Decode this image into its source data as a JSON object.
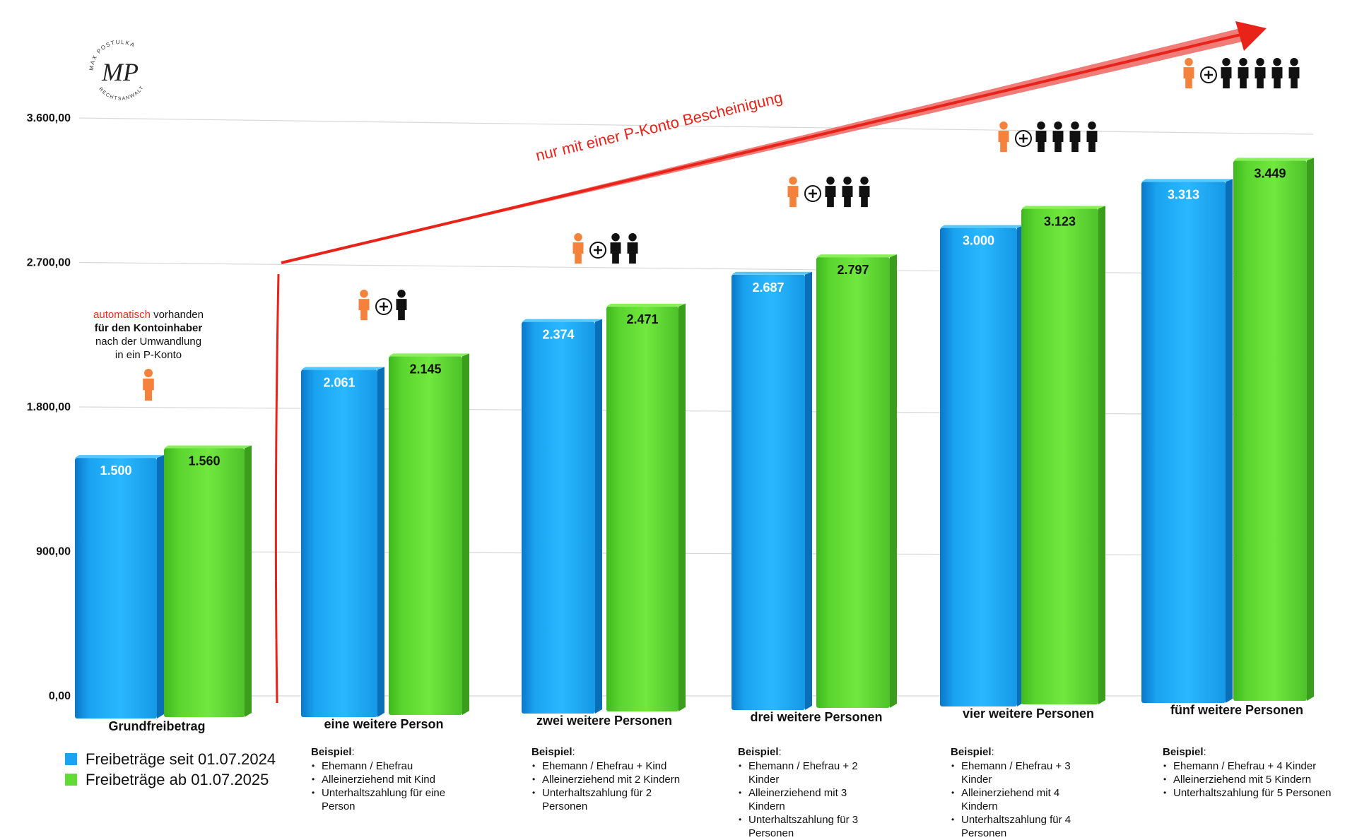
{
  "chart_data": {
    "type": "bar",
    "categories": [
      "Grundfreibetrag",
      "eine weitere Person",
      "zwei weitere Personen",
      "drei weitere Personen",
      "vier weitere Personen",
      "fünf weitere Personen"
    ],
    "series": [
      {
        "name": "Freibeträge seit 01.07.2024",
        "values": [
          1500,
          2061,
          2374,
          2687,
          3000,
          3313
        ],
        "labels": [
          "1.500",
          "2.061",
          "2.374",
          "2.687",
          "3.000",
          "3.313"
        ],
        "color": "#1aa3f0"
      },
      {
        "name": "Freibeträge ab 01.07.2025",
        "values": [
          1560,
          2145,
          2471,
          2797,
          3123,
          3449
        ],
        "labels": [
          "1.560",
          "2.145",
          "2.471",
          "2.797",
          "3.123",
          "3.449"
        ],
        "color": "#62dc35"
      }
    ],
    "ylim": [
      0,
      3600
    ],
    "yticks": [
      0,
      900,
      1800,
      2700,
      3600
    ],
    "ytick_labels": [
      "0,00",
      "900,00",
      "1.800,00",
      "2.700,00",
      "3.600,00"
    ],
    "grid": true,
    "legend_position": "bottom-left",
    "annotation": "nur mit einer P-Konto Bescheinigung",
    "additional_persons": [
      0,
      1,
      2,
      3,
      4,
      5
    ]
  },
  "auto_note": {
    "highlight": "automatisch",
    "line1_rest": " vorhanden",
    "line2": "für den Kontoinhaber",
    "line3": "nach der Umwandlung",
    "line4": "in ein  P-Konto"
  },
  "examples": [
    {
      "title": "Beispiel",
      "colon": ":",
      "items": [
        "Ehemann / Ehefrau",
        "Alleinerziehend mit Kind",
        "Unterhaltszahlung für eine Person"
      ]
    },
    {
      "title": "Beispiel",
      "colon": ":",
      "items": [
        "Ehemann / Ehefrau + Kind",
        "Alleinerziehend mit 2 Kindern",
        "Unterhaltszahlung für 2 Personen"
      ]
    },
    {
      "title": "Beispiel",
      "colon": ":",
      "items": [
        "Ehemann / Ehefrau + 2 Kinder",
        "Alleinerziehend mit 3 Kindern",
        "Unterhaltszahlung für 3 Personen"
      ]
    },
    {
      "title": "Beispiel",
      "colon": ":",
      "items": [
        "Ehemann / Ehefrau + 3 Kinder",
        "Alleinerziehend mit 4 Kindern",
        "Unterhaltszahlung für 4 Personen"
      ]
    },
    {
      "title": "Beispiel",
      "colon": ":",
      "items": [
        "Ehemann / Ehefrau + 4 Kinder",
        "Alleinerziehend mit 5 Kindern",
        "Unterhaltszahlung für 5 Personen"
      ]
    }
  ],
  "logo": {
    "monogram": "MP",
    "ring_top": "MAX POSTULKA",
    "ring_bottom": "RECHTSANWALT"
  },
  "colors": {
    "owner": "#f5823c",
    "dependent": "#111111",
    "arrow": "#e8231a",
    "grid": "#d8d8d8"
  },
  "icons": {
    "owner": "person-orange-icon",
    "plus": "circled-plus-icon",
    "dependent": "person-black-icon"
  }
}
